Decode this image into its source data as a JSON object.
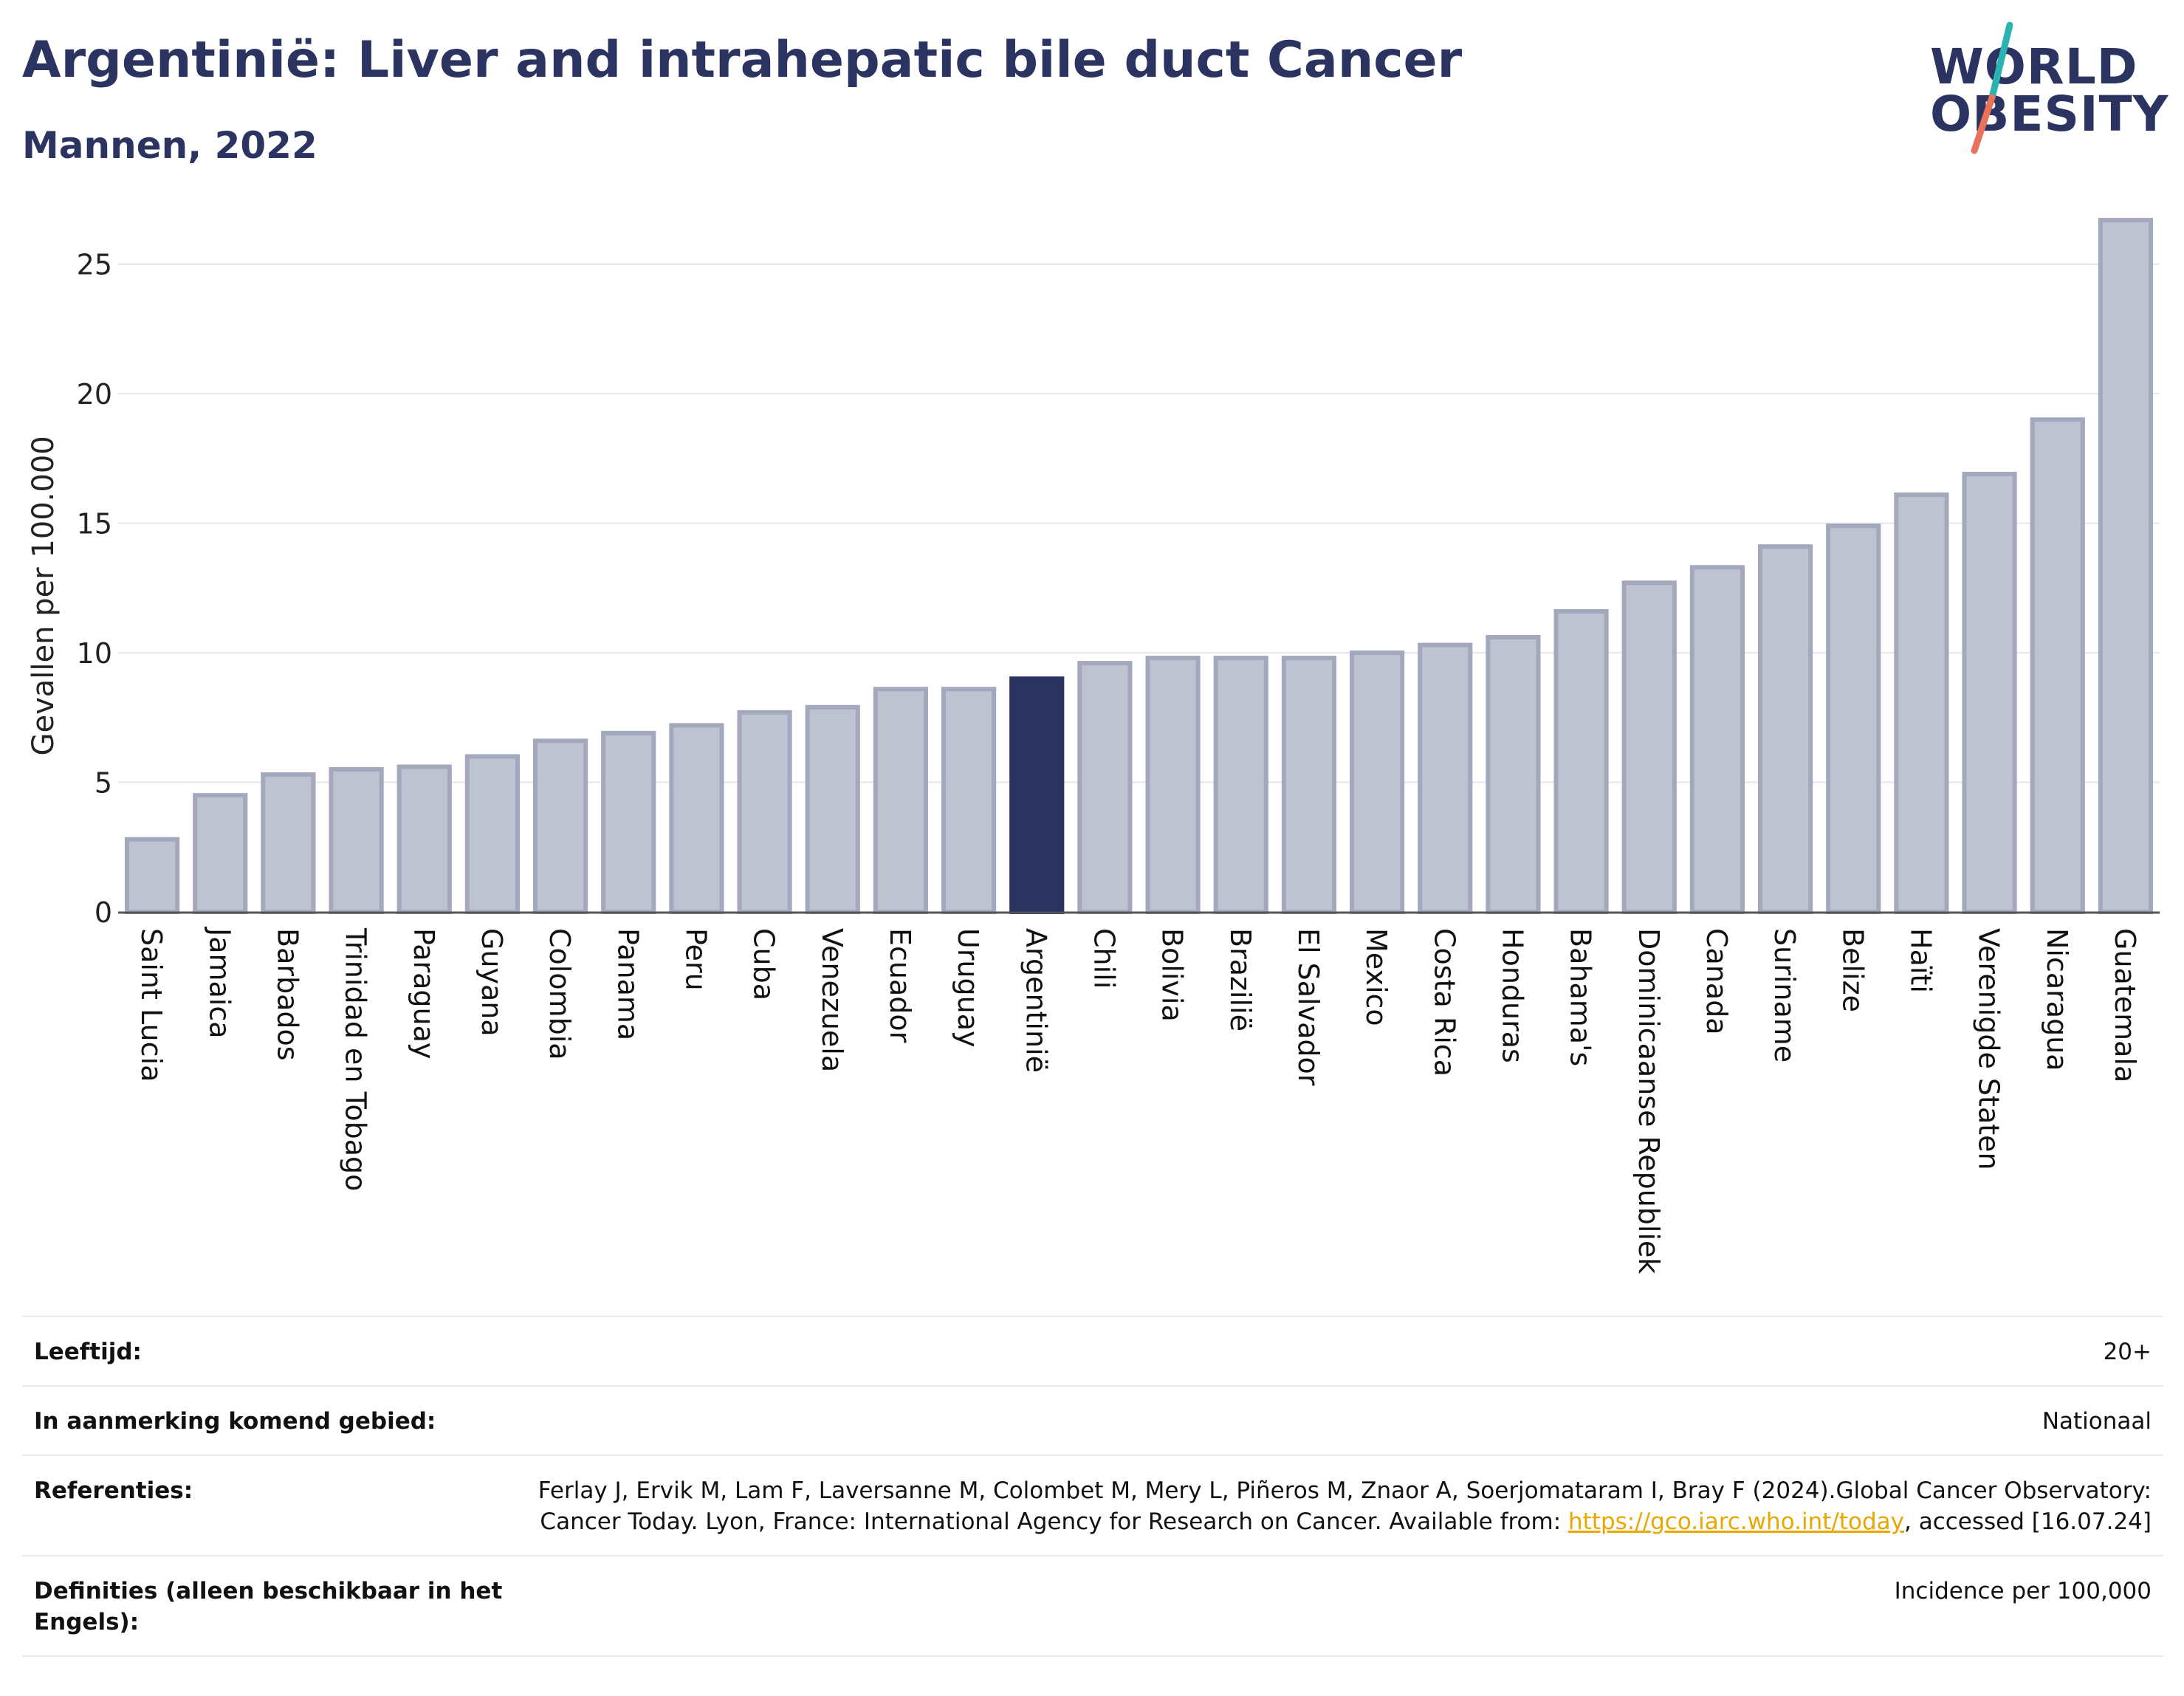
{
  "header": {
    "title": "Argentinië: Liver and intrahepatic bile duct Cancer",
    "subtitle": "Mannen, 2022"
  },
  "logo": {
    "line1": "WORLD",
    "line2": "OBESITY",
    "slash_colors": [
      "#2ab3b1",
      "#e8735a"
    ]
  },
  "colors": {
    "bar_default": "#bfc2d0",
    "bar_border": "#a3a8bd",
    "bar_highlight": "#2b3360",
    "title": "#2b3360",
    "grid": "#e6e6ec",
    "link": "#e9a800"
  },
  "chart_data": {
    "type": "bar",
    "ylabel": "Gevallen per 100.000",
    "xlabel": "",
    "ylim": [
      0,
      27.5
    ],
    "yticks": [
      0,
      5,
      10,
      15,
      20,
      25
    ],
    "grid": true,
    "highlight": "Argentinië",
    "categories": [
      "Saint Lucia",
      "Jamaica",
      "Barbados",
      "Trinidad en Tobago",
      "Paraguay",
      "Guyana",
      "Colombia",
      "Panama",
      "Peru",
      "Cuba",
      "Venezuela",
      "Ecuador",
      "Uruguay",
      "Argentinië",
      "Chili",
      "Bolivia",
      "Brazilië",
      "El Salvador",
      "Mexico",
      "Costa Rica",
      "Honduras",
      "Bahama's",
      "Dominicaanse Republiek",
      "Canada",
      "Suriname",
      "Belize",
      "Haïti",
      "Verenigde Staten",
      "Nicaragua",
      "Guatemala"
    ],
    "values": [
      2.8,
      4.5,
      5.3,
      5.5,
      5.6,
      6.0,
      6.6,
      6.9,
      7.2,
      7.7,
      7.9,
      8.6,
      8.6,
      9.0,
      9.6,
      9.8,
      9.8,
      9.8,
      10.0,
      10.3,
      10.6,
      11.6,
      12.7,
      13.3,
      14.1,
      14.9,
      16.1,
      16.9,
      19.0,
      26.7
    ]
  },
  "info": {
    "age_label": "Leeftijd:",
    "age_value": "20+",
    "area_label": "In aanmerking komend gebied:",
    "area_value": "Nationaal",
    "refs_label": "Referenties:",
    "refs_text_1": "Ferlay J, Ervik M, Lam F, Laversanne M, Colombet M, Mery L, Piñeros M, Znaor A, Soerjomataram I, Bray F (2024).Global Cancer Observatory: Cancer Today. Lyon, France: International Agency for Research on Cancer. Available from: ",
    "refs_link": "https://gco.iarc.who.int/today",
    "refs_text_2": ", accessed [16.07.24]",
    "defs_label": "Definities (alleen beschikbaar in het Engels):",
    "defs_value": "Incidence per 100,000"
  }
}
